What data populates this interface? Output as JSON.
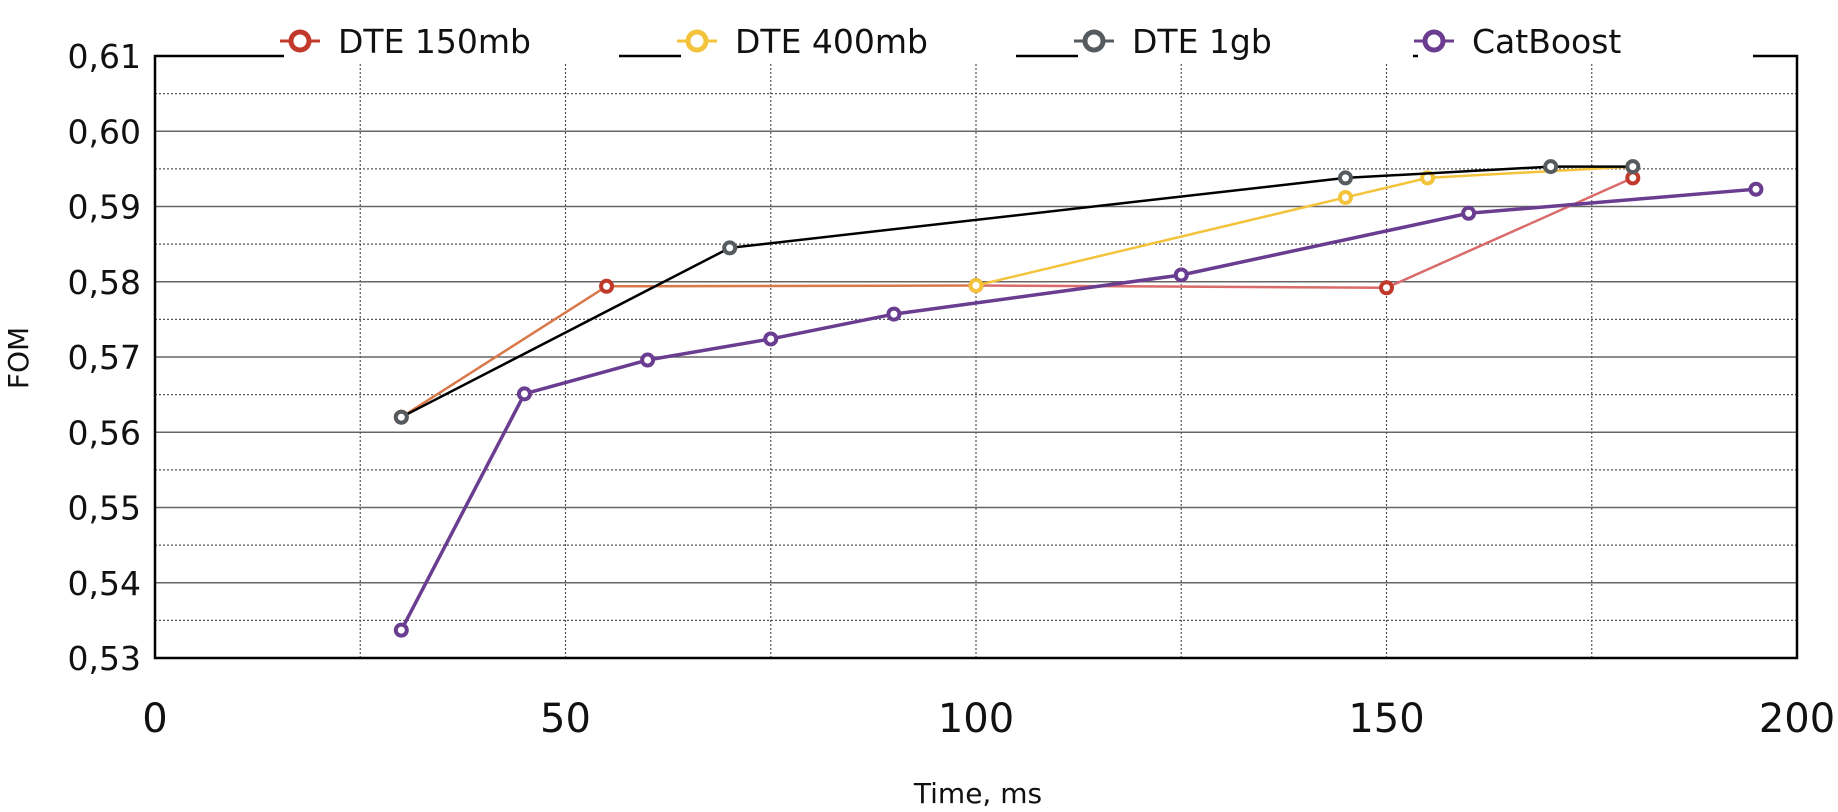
{
  "chart_data": {
    "type": "line",
    "title": "",
    "xlabel": "Time, ms",
    "ylabel": "FOM",
    "xlim": [
      0,
      200
    ],
    "ylim": [
      0.53,
      0.61
    ],
    "x_ticks": [
      0,
      50,
      100,
      150,
      200
    ],
    "x_tick_labels": [
      "0",
      "50",
      "100",
      "150",
      "200"
    ],
    "y_ticks": [
      0.53,
      0.54,
      0.55,
      0.56,
      0.57,
      0.58,
      0.59,
      0.6,
      0.61
    ],
    "y_tick_labels": [
      "0,53",
      "0,54",
      "0,55",
      "0,56",
      "0,57",
      "0,58",
      "0,59",
      "0,60",
      "0,61"
    ],
    "grid": true,
    "legend_position": "top",
    "series": [
      {
        "name": "DTE 150mb",
        "color": "#c0392b",
        "line_colors": [
          "#d9794a",
          "#d96b6b"
        ],
        "x": [
          30,
          55,
          100,
          150,
          180
        ],
        "y": [
          0.562,
          0.5794,
          0.5795,
          0.5792,
          0.5938
        ]
      },
      {
        "name": "DTE 400mb",
        "color": "#f3c33c",
        "x": [
          100,
          145,
          155,
          180
        ],
        "y": [
          0.5795,
          0.5912,
          0.5938,
          0.5953
        ]
      },
      {
        "name": "DTE 1gb",
        "color": "#555b5f",
        "line_color": "#000000",
        "x": [
          30,
          70,
          145,
          170,
          180
        ],
        "y": [
          0.562,
          0.5845,
          0.5938,
          0.5953,
          0.5953
        ]
      },
      {
        "name": "CatBoost",
        "color": "#6a3d91",
        "x": [
          30,
          45,
          60,
          75,
          90,
          125,
          160,
          195
        ],
        "y": [
          0.5337,
          0.5651,
          0.5696,
          0.5724,
          0.5757,
          0.5809,
          0.5891,
          0.5923
        ]
      }
    ]
  }
}
